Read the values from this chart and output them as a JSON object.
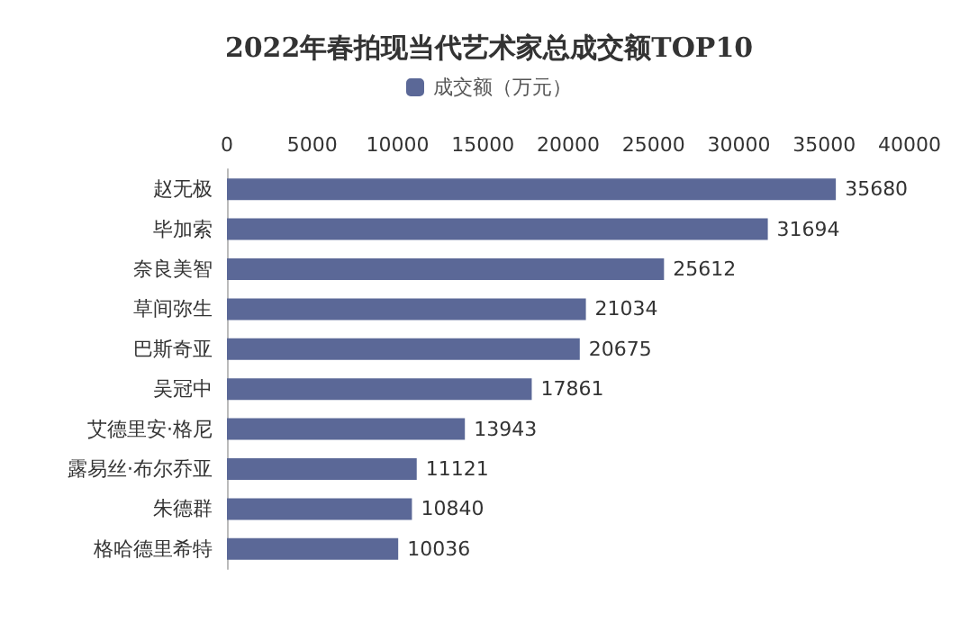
{
  "chart_data": {
    "type": "bar",
    "orientation": "horizontal",
    "title": "2022年春拍现当代艺术家总成交额TOP10",
    "categories": [
      "赵无极",
      "毕加索",
      "奈良美智",
      "草间弥生",
      "巴斯奇亚",
      "吴冠中",
      "艾德里安·格尼",
      "露易丝·布尔乔亚",
      "朱德群",
      "格哈德里希特"
    ],
    "series": [
      {
        "name": "成交额（万元）",
        "color": "#5b6897",
        "values": [
          35680,
          31694,
          25612,
          21034,
          20675,
          17861,
          13943,
          11121,
          10840,
          10036
        ]
      }
    ],
    "xlim": [
      0,
      40000
    ],
    "xticks": [
      0,
      5000,
      10000,
      15000,
      20000,
      25000,
      30000,
      35000,
      40000
    ],
    "data_labels": true,
    "legend": "top",
    "grid": false
  }
}
